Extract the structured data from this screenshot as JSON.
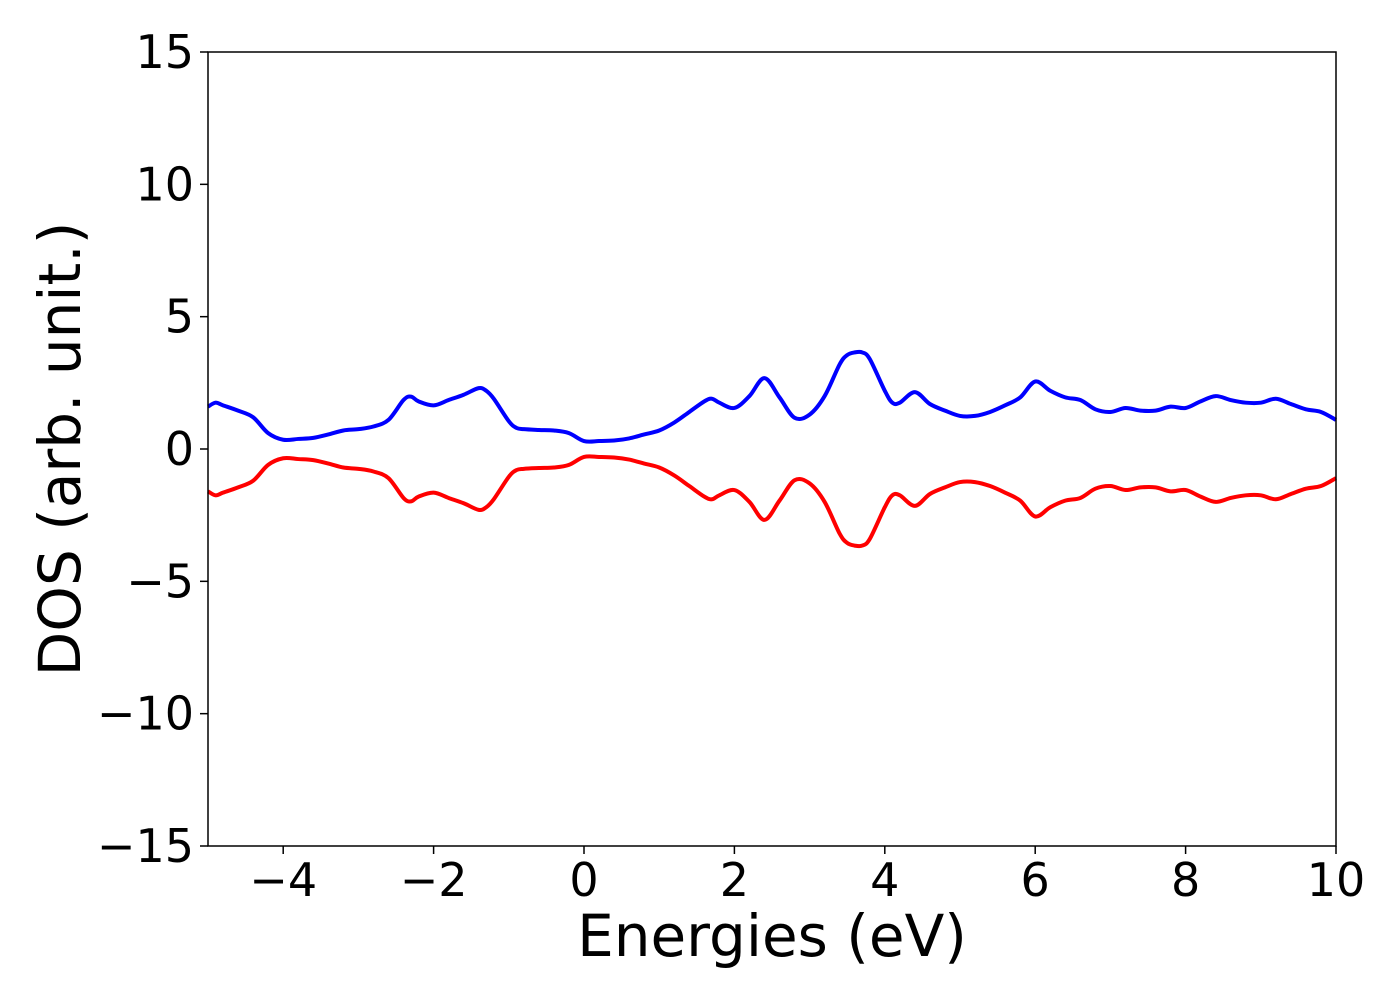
{
  "chart_data": {
    "type": "line",
    "title": "",
    "xlabel": "Energies (eV)",
    "ylabel": "DOS (arb. unit.)",
    "xlim": [
      -5,
      10
    ],
    "ylim": [
      -15,
      15
    ],
    "xticks": [
      -4,
      -2,
      0,
      2,
      4,
      6,
      8,
      10
    ],
    "xtick_labels": [
      "−4",
      "−2",
      "0",
      "2",
      "4",
      "6",
      "8",
      "10"
    ],
    "yticks": [
      15,
      10,
      5,
      0,
      -5,
      -10,
      -15
    ],
    "ytick_labels": [
      "15",
      "10",
      "5",
      "0",
      "−5",
      "−10",
      "−15"
    ],
    "grid": false,
    "legend": "none",
    "series": [
      {
        "color": "#0000ff",
        "x": [
          -5.0,
          -4.9,
          -4.8,
          -4.6,
          -4.4,
          -4.2,
          -4.0,
          -3.8,
          -3.6,
          -3.4,
          -3.2,
          -3.0,
          -2.8,
          -2.6,
          -2.4,
          -2.3,
          -2.2,
          -2.0,
          -1.8,
          -1.6,
          -1.4,
          -1.3,
          -1.2,
          -1.0,
          -0.9,
          -0.8,
          -0.6,
          -0.4,
          -0.2,
          0.0,
          0.2,
          0.4,
          0.6,
          0.8,
          1.0,
          1.2,
          1.4,
          1.6,
          1.7,
          1.8,
          2.0,
          2.2,
          2.4,
          2.6,
          2.8,
          3.0,
          3.2,
          3.4,
          3.5,
          3.6,
          3.7,
          3.8,
          4.0,
          4.1,
          4.2,
          4.4,
          4.6,
          4.8,
          5.0,
          5.2,
          5.4,
          5.6,
          5.8,
          6.0,
          6.2,
          6.4,
          6.6,
          6.8,
          7.0,
          7.2,
          7.4,
          7.6,
          7.8,
          8.0,
          8.2,
          8.4,
          8.6,
          8.8,
          9.0,
          9.2,
          9.4,
          9.6,
          9.8,
          10.0
        ],
        "y": [
          1.6,
          1.75,
          1.65,
          1.45,
          1.2,
          0.6,
          0.35,
          0.38,
          0.42,
          0.55,
          0.7,
          0.75,
          0.85,
          1.1,
          1.85,
          1.98,
          1.8,
          1.65,
          1.85,
          2.05,
          2.3,
          2.2,
          1.9,
          1.05,
          0.8,
          0.75,
          0.72,
          0.7,
          0.6,
          0.3,
          0.3,
          0.32,
          0.4,
          0.55,
          0.7,
          1.0,
          1.4,
          1.8,
          1.9,
          1.75,
          1.55,
          2.0,
          2.68,
          1.95,
          1.18,
          1.3,
          2.0,
          3.2,
          3.55,
          3.65,
          3.65,
          3.4,
          2.2,
          1.75,
          1.75,
          2.15,
          1.7,
          1.45,
          1.25,
          1.25,
          1.4,
          1.65,
          1.95,
          2.55,
          2.2,
          1.95,
          1.85,
          1.5,
          1.4,
          1.55,
          1.45,
          1.45,
          1.6,
          1.55,
          1.8,
          2.0,
          1.85,
          1.75,
          1.75,
          1.9,
          1.7,
          1.5,
          1.4,
          1.1
        ]
      },
      {
        "color": "#ff0000",
        "x": [
          -5.0,
          -4.9,
          -4.8,
          -4.6,
          -4.4,
          -4.2,
          -4.0,
          -3.8,
          -3.6,
          -3.4,
          -3.2,
          -3.0,
          -2.8,
          -2.6,
          -2.4,
          -2.3,
          -2.2,
          -2.0,
          -1.8,
          -1.6,
          -1.4,
          -1.3,
          -1.2,
          -1.0,
          -0.9,
          -0.8,
          -0.6,
          -0.4,
          -0.2,
          0.0,
          0.2,
          0.4,
          0.6,
          0.8,
          1.0,
          1.2,
          1.4,
          1.6,
          1.7,
          1.8,
          2.0,
          2.2,
          2.4,
          2.6,
          2.8,
          3.0,
          3.2,
          3.4,
          3.5,
          3.6,
          3.7,
          3.8,
          4.0,
          4.1,
          4.2,
          4.4,
          4.6,
          4.8,
          5.0,
          5.2,
          5.4,
          5.6,
          5.8,
          6.0,
          6.2,
          6.4,
          6.6,
          6.8,
          7.0,
          7.2,
          7.4,
          7.6,
          7.8,
          8.0,
          8.2,
          8.4,
          8.6,
          8.8,
          9.0,
          9.2,
          9.4,
          9.6,
          9.8,
          10.0
        ],
        "y": [
          -1.6,
          -1.75,
          -1.65,
          -1.45,
          -1.2,
          -0.6,
          -0.35,
          -0.38,
          -0.42,
          -0.55,
          -0.7,
          -0.75,
          -0.85,
          -1.1,
          -1.85,
          -1.98,
          -1.8,
          -1.65,
          -1.85,
          -2.05,
          -2.3,
          -2.2,
          -1.9,
          -1.05,
          -0.8,
          -0.75,
          -0.72,
          -0.7,
          -0.6,
          -0.3,
          -0.3,
          -0.32,
          -0.4,
          -0.55,
          -0.7,
          -1.0,
          -1.4,
          -1.8,
          -1.9,
          -1.75,
          -1.55,
          -2.0,
          -2.68,
          -1.95,
          -1.18,
          -1.3,
          -2.0,
          -3.2,
          -3.55,
          -3.65,
          -3.65,
          -3.4,
          -2.2,
          -1.75,
          -1.75,
          -2.15,
          -1.7,
          -1.45,
          -1.25,
          -1.25,
          -1.4,
          -1.65,
          -1.95,
          -2.55,
          -2.2,
          -1.95,
          -1.85,
          -1.5,
          -1.4,
          -1.55,
          -1.45,
          -1.45,
          -1.6,
          -1.55,
          -1.8,
          -2.0,
          -1.85,
          -1.75,
          -1.75,
          -1.9,
          -1.7,
          -1.5,
          -1.4,
          -1.1
        ]
      }
    ]
  }
}
